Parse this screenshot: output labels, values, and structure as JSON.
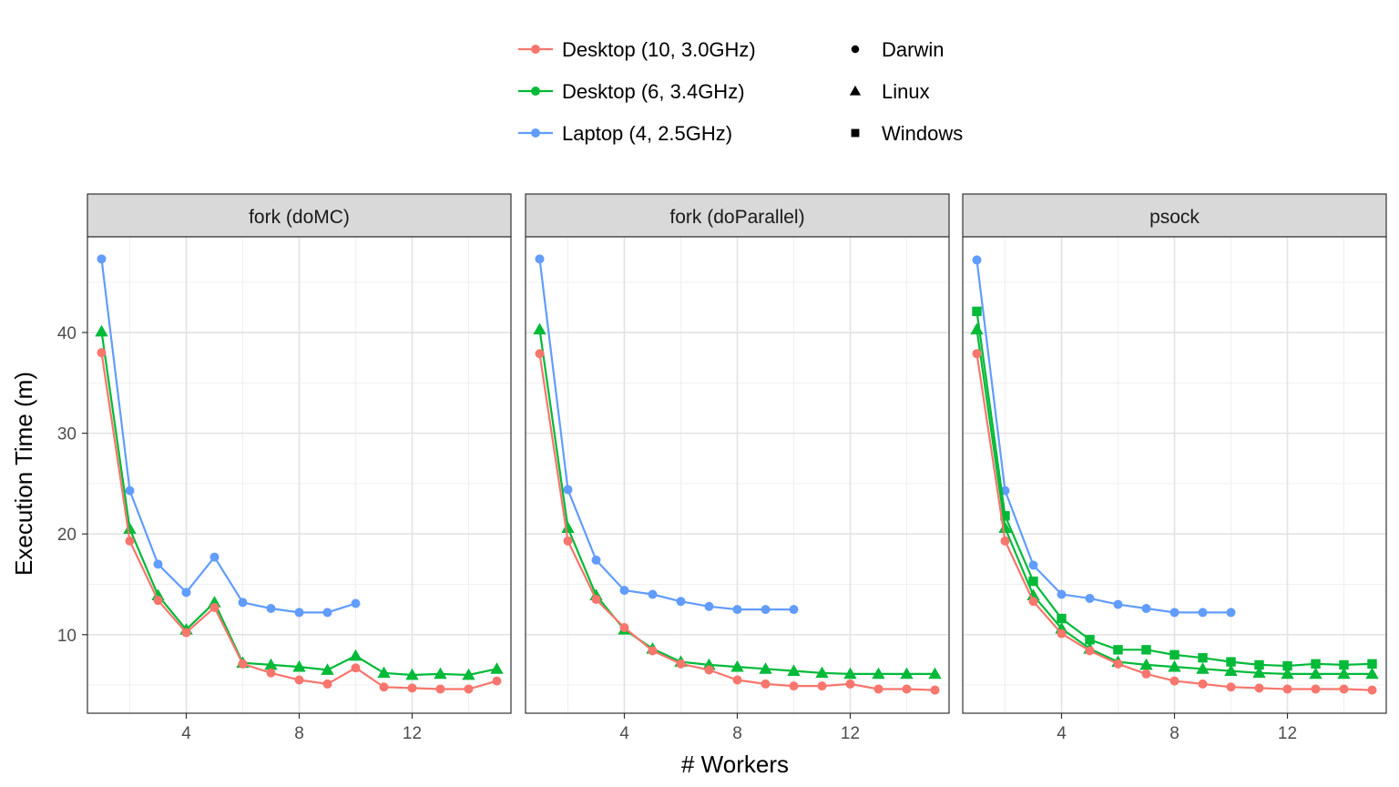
{
  "chart_data": {
    "type": "line",
    "xlabel": "# Workers",
    "ylabel": "Execution Time (m)",
    "xlim": [
      0.5,
      15.5
    ],
    "ylim": [
      2.2,
      49.5
    ],
    "x_ticks": [
      4,
      8,
      12
    ],
    "x_ticks_labels": [
      "4",
      "8",
      "12"
    ],
    "y_ticks": [
      10,
      20,
      30,
      40
    ],
    "y_ticks_labels": [
      "10",
      "20",
      "30",
      "40"
    ],
    "grid": true,
    "legend_position": "top",
    "legend": {
      "color": [
        {
          "label": "Desktop (10, 3.0GHz)",
          "color": "#F8766D"
        },
        {
          "label": "Desktop (6, 3.4GHz)",
          "color": "#00BA38"
        },
        {
          "label": "Laptop (4, 2.5GHz)",
          "color": "#619CFF"
        }
      ],
      "shape": [
        {
          "label": "Darwin",
          "shape": "circle"
        },
        {
          "label": "Linux",
          "shape": "triangle"
        },
        {
          "label": "Windows",
          "shape": "square"
        }
      ]
    },
    "panels": [
      {
        "title": "fork (doMC)",
        "series": [
          {
            "color": "#619CFF",
            "shape": "circle",
            "x": [
              1,
              2,
              3,
              4,
              5,
              6,
              7,
              8,
              9,
              10
            ],
            "y": [
              47.3,
              24.3,
              17.0,
              14.2,
              17.7,
              13.2,
              12.6,
              12.2,
              12.2,
              13.1
            ]
          },
          {
            "color": "#00BA38",
            "shape": "triangle",
            "x": [
              1,
              2,
              3,
              4,
              5,
              6,
              7,
              8,
              9,
              10,
              11,
              12,
              13,
              14,
              15
            ],
            "y": [
              40.1,
              20.5,
              13.9,
              10.5,
              13.2,
              7.2,
              7.0,
              6.8,
              6.5,
              7.9,
              6.2,
              6.0,
              6.1,
              6.0,
              6.6
            ]
          },
          {
            "color": "#F8766D",
            "shape": "circle",
            "x": [
              1,
              2,
              3,
              4,
              5,
              6,
              7,
              8,
              9,
              10,
              11,
              12,
              13,
              14,
              15
            ],
            "y": [
              38.0,
              19.3,
              13.4,
              10.2,
              12.7,
              7.1,
              6.2,
              5.5,
              5.1,
              6.7,
              4.8,
              4.7,
              4.6,
              4.6,
              5.4
            ]
          }
        ]
      },
      {
        "title": "fork (doParallel)",
        "series": [
          {
            "color": "#619CFF",
            "shape": "circle",
            "x": [
              1,
              2,
              3,
              4,
              5,
              6,
              7,
              8,
              9,
              10
            ],
            "y": [
              47.3,
              24.4,
              17.4,
              14.4,
              14.0,
              13.3,
              12.8,
              12.5,
              12.5,
              12.5
            ]
          },
          {
            "color": "#00BA38",
            "shape": "triangle",
            "x": [
              1,
              2,
              3,
              4,
              5,
              6,
              7,
              8,
              9,
              10,
              11,
              12,
              13,
              14,
              15
            ],
            "y": [
              40.3,
              20.6,
              13.9,
              10.5,
              8.6,
              7.3,
              7.0,
              6.8,
              6.6,
              6.4,
              6.2,
              6.1,
              6.1,
              6.1,
              6.1
            ]
          },
          {
            "color": "#F8766D",
            "shape": "circle",
            "x": [
              1,
              2,
              3,
              4,
              5,
              6,
              7,
              8,
              9,
              10,
              11,
              12,
              13,
              14,
              15
            ],
            "y": [
              37.9,
              19.3,
              13.5,
              10.7,
              8.4,
              7.1,
              6.5,
              5.5,
              5.1,
              4.9,
              4.9,
              5.1,
              4.6,
              4.6,
              4.5
            ]
          }
        ]
      },
      {
        "title": "psock",
        "series": [
          {
            "color": "#619CFF",
            "shape": "circle",
            "x": [
              1,
              2,
              3,
              4,
              5,
              6,
              7,
              8,
              9,
              10
            ],
            "y": [
              47.2,
              24.3,
              16.9,
              14.0,
              13.6,
              13.0,
              12.6,
              12.2,
              12.2,
              12.2
            ]
          },
          {
            "color": "#00BA38",
            "shape": "square",
            "x": [
              1,
              2,
              3,
              4,
              5,
              6,
              7,
              8,
              9,
              10,
              11,
              12,
              13,
              14,
              15
            ],
            "y": [
              42.1,
              21.8,
              15.3,
              11.6,
              9.5,
              8.5,
              8.5,
              8.0,
              7.7,
              7.3,
              7.0,
              6.9,
              7.1,
              7.0,
              7.1
            ]
          },
          {
            "color": "#00BA38",
            "shape": "triangle",
            "x": [
              1,
              2,
              3,
              4,
              5,
              6,
              7,
              8,
              9,
              10,
              11,
              12,
              13,
              14,
              15
            ],
            "y": [
              40.3,
              20.6,
              13.9,
              10.6,
              8.6,
              7.3,
              7.0,
              6.8,
              6.6,
              6.4,
              6.2,
              6.1,
              6.1,
              6.1,
              6.1
            ]
          },
          {
            "color": "#F8766D",
            "shape": "circle",
            "x": [
              1,
              2,
              3,
              4,
              5,
              6,
              7,
              8,
              9,
              10,
              11,
              12,
              13,
              14,
              15
            ],
            "y": [
              37.9,
              19.3,
              13.3,
              10.1,
              8.4,
              7.1,
              6.1,
              5.4,
              5.1,
              4.8,
              4.7,
              4.6,
              4.6,
              4.6,
              4.5
            ]
          }
        ]
      }
    ]
  }
}
